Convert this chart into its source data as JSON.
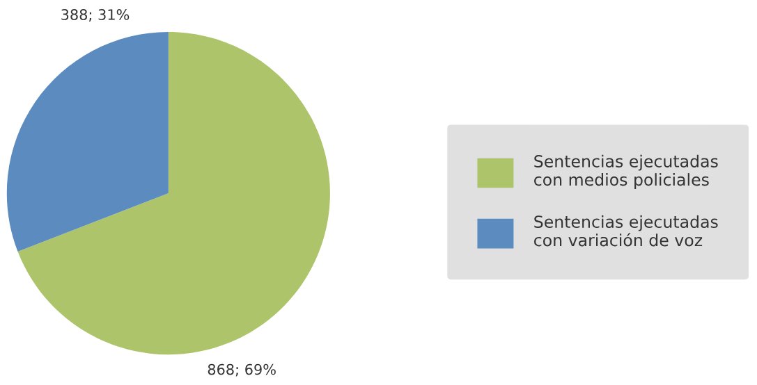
{
  "chart_data": {
    "type": "pie",
    "categories": [
      "Sentencias ejecutadas\ncon medios policiales",
      "Sentencias ejecutadas\ncon variación de voz"
    ],
    "values": [
      868,
      388
    ],
    "value_labels": [
      "868; 69%",
      "388; 31%"
    ],
    "colors": [
      "#adc46b",
      "#5b8bbf"
    ],
    "legend": "right"
  }
}
